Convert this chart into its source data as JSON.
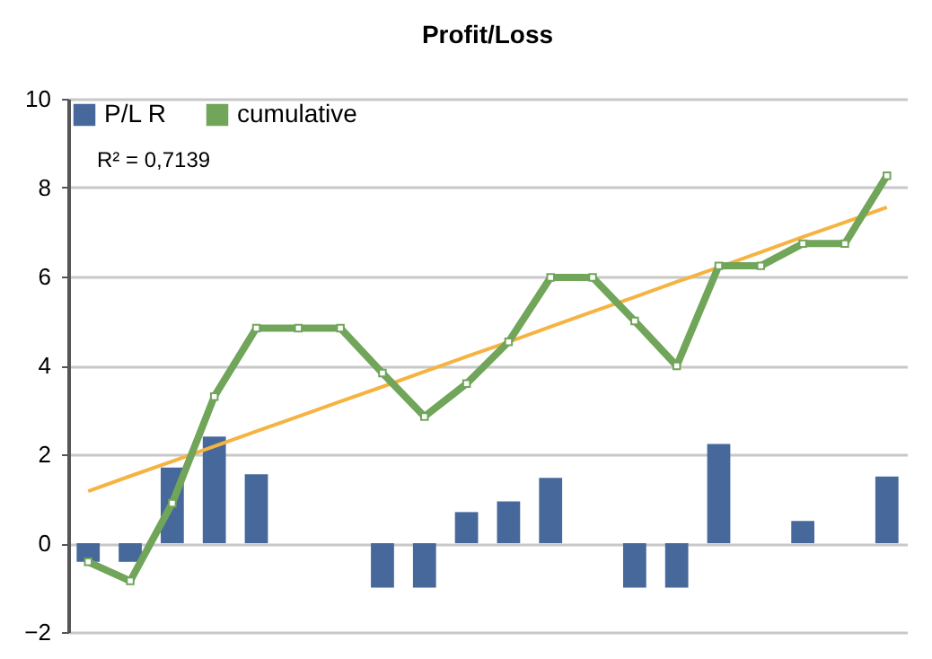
{
  "chart_data": {
    "type": "bar",
    "title": "Profit/Loss",
    "annotations": [
      "R² = 0,7139"
    ],
    "categories": [
      null,
      null,
      null,
      null,
      null,
      null,
      null,
      null,
      null,
      null,
      null,
      null,
      null,
      null,
      null,
      null,
      null,
      null,
      null,
      null
    ],
    "ylim": [
      -2,
      10
    ],
    "yticks": [
      -2,
      0,
      2,
      4,
      6,
      8,
      10
    ],
    "grid": "y",
    "legend": "top left",
    "tick_labels": "y",
    "series": [
      {
        "name": "P/L R",
        "color": "#46689b",
        "values": [
          -0.42,
          -0.42,
          1.7,
          2.4,
          1.55,
          0,
          0,
          -1,
          -1,
          0.7,
          0.94,
          1.47,
          0,
          -1,
          -1,
          2.23,
          0,
          0.5,
          0,
          1.5
        ]
      },
      {
        "name": "cumulative",
        "type": "line",
        "color": "#70a55a",
        "marker": "square",
        "values": [
          -0.42,
          -0.85,
          0.9,
          3.3,
          4.84,
          4.84,
          4.84,
          3.83,
          2.85,
          3.59,
          4.53,
          5.98,
          5.98,
          5.0,
          3.99,
          6.24,
          6.24,
          6.74,
          6.74,
          8.27
        ]
      },
      {
        "type": "line",
        "color": "#f5b342",
        "marker": "none",
        "values": [
          1.17,
          1.51,
          1.84,
          2.18,
          2.52,
          2.85,
          3.19,
          3.52,
          3.86,
          4.2,
          4.53,
          4.87,
          5.21,
          5.54,
          5.88,
          6.21,
          6.55,
          6.89,
          7.22,
          7.56
        ]
      }
    ]
  }
}
